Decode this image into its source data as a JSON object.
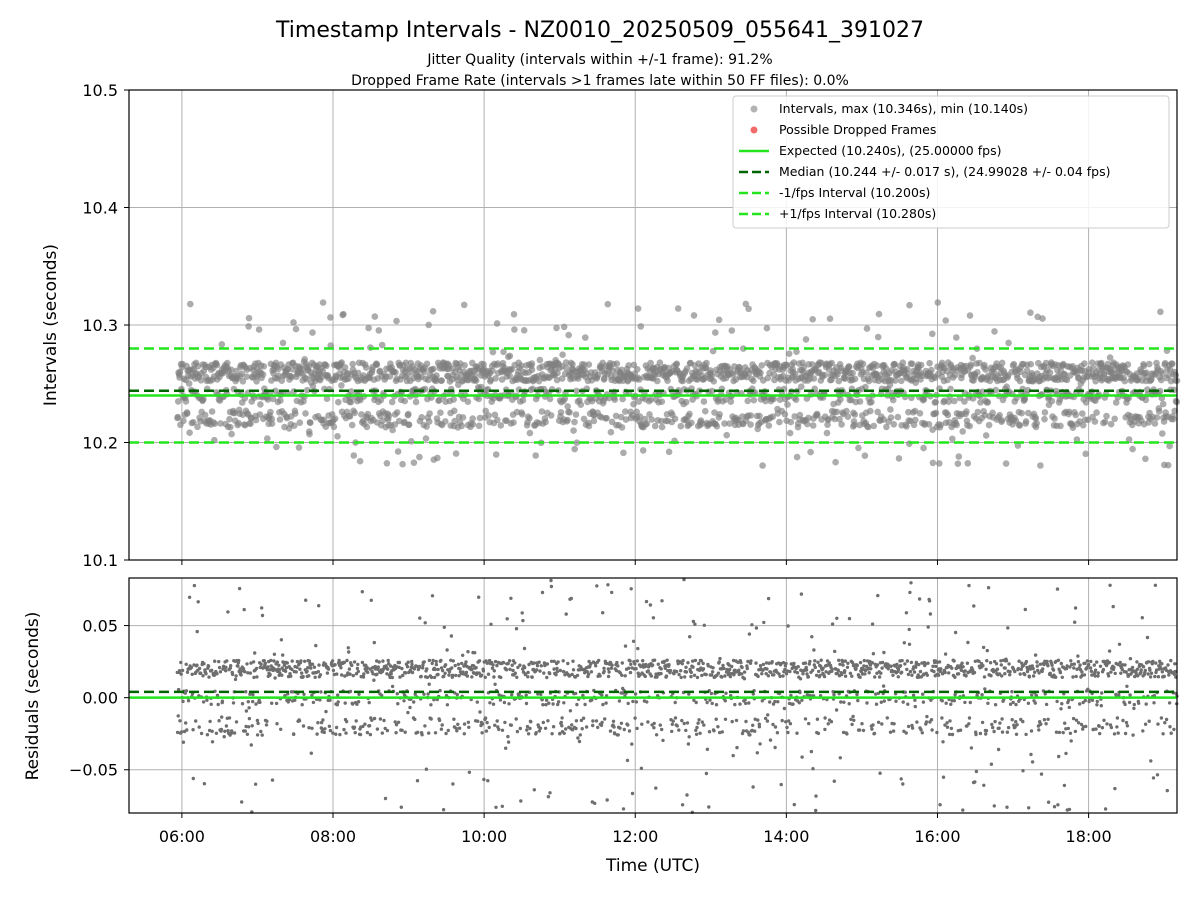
{
  "chart_data": [
    {
      "type": "scatter",
      "title": "Timestamp Intervals - NZ0010_20250509_055641_391027",
      "subtitle_lines": [
        "Jitter Quality (intervals within +/-1 frame): 91.2%",
        "Dropped Frame Rate (intervals >1 frames late within 50 FF files): 0.0%"
      ],
      "xlabel": "",
      "ylabel": "Intervals (seconds)",
      "x_unit": "hours (UTC)",
      "xlim": [
        5.3,
        19.17
      ],
      "ylim": [
        10.1,
        10.5
      ],
      "yticks": [
        10.1,
        10.2,
        10.3,
        10.4,
        10.5
      ],
      "ytick_labels": [
        "10.1",
        "10.2",
        "10.3",
        "10.4",
        "10.5"
      ],
      "grid": true,
      "legend_position": "upper-right",
      "data_start_hour": 5.94,
      "data_end_hour": 19.17,
      "series": [
        {
          "name": "Intervals, max (10.346s), min (10.140s)",
          "kind": "scatter",
          "color": "#808080",
          "max": 10.346,
          "min": 10.14,
          "levels": [
            10.22,
            10.24,
            10.26
          ],
          "outlier_band": [
            10.18,
            10.32
          ]
        },
        {
          "name": "Possible Dropped Frames",
          "kind": "scatter",
          "color": "#f26b6b",
          "values": []
        },
        {
          "name": "Expected (10.240s), (25.00000 fps)",
          "kind": "hline",
          "y": 10.24,
          "color": "#22e51e",
          "style": "solid"
        },
        {
          "name": "Median (10.244 +/- 0.017 s), (24.99028 +/- 0.04 fps)",
          "kind": "hline",
          "y": 10.244,
          "color": "#006400",
          "style": "dashed"
        },
        {
          "name": "-1/fps Interval (10.200s)",
          "kind": "hline",
          "y": 10.2,
          "color": "#22e51e",
          "style": "dashed"
        },
        {
          "name": "+1/fps Interval (10.280s)",
          "kind": "hline",
          "y": 10.28,
          "color": "#22e51e",
          "style": "dashed"
        }
      ]
    },
    {
      "type": "scatter",
      "title": "",
      "xlabel": "Time (UTC)",
      "ylabel": "Residuals (seconds)",
      "x_unit": "hours (UTC)",
      "xlim": [
        5.3,
        19.17
      ],
      "ylim": [
        -0.08,
        0.083
      ],
      "yticks": [
        -0.05,
        0.0,
        0.05
      ],
      "ytick_labels": [
        "−0.05",
        "0.00",
        "0.05"
      ],
      "xticks": [
        6,
        8,
        10,
        12,
        14,
        16,
        18
      ],
      "xtick_labels": [
        "06:00",
        "08:00",
        "10:00",
        "12:00",
        "14:00",
        "16:00",
        "18:00"
      ],
      "grid": true,
      "series": [
        {
          "name": "Residuals",
          "kind": "scatter",
          "color": "#6e6e6e",
          "levels": [
            -0.02,
            0.0,
            0.02
          ],
          "spread": [
            -0.08,
            0.083
          ]
        },
        {
          "name": "Expected",
          "kind": "hline",
          "y": 0.0,
          "color": "#22e51e",
          "style": "solid"
        },
        {
          "name": "Median",
          "kind": "hline",
          "y": 0.004,
          "color": "#006400",
          "style": "dashed"
        }
      ]
    }
  ]
}
